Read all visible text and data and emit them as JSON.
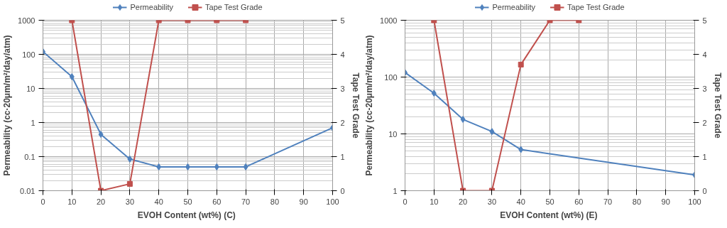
{
  "chart_data": [
    {
      "type": "line",
      "xlabel": "EVOH Content (wt%)  (C)",
      "ylabel": "Permeability (cc·20μm/m²/day/atm)",
      "y2label": "Tape Test Grade",
      "log": "y",
      "grid": true,
      "legend": "top",
      "xlim": [
        0,
        100
      ],
      "xticks": [
        0,
        10,
        20,
        30,
        40,
        50,
        60,
        70,
        80,
        90,
        100
      ],
      "ylim": [
        0.01,
        1000
      ],
      "yticks": [
        0.01,
        0.1,
        1,
        10,
        100,
        1000
      ],
      "y2lim": [
        0,
        5
      ],
      "y2ticks": [
        0,
        1,
        2,
        3,
        4,
        5
      ],
      "series": [
        {
          "name": "Permeability",
          "color": "#4f81bd",
          "marker": "diamond",
          "x": [
            0,
            10,
            20,
            30,
            40,
            50,
            60,
            70,
            100
          ],
          "values": [
            120,
            22,
            0.45,
            0.085,
            0.05,
            0.05,
            0.05,
            0.05,
            0.7
          ]
        },
        {
          "name": "Tape Test Grade",
          "color": "#c0504d",
          "marker": "square",
          "axis": "y2",
          "x": [
            10,
            20,
            30,
            40,
            50,
            60,
            70
          ],
          "values": [
            5,
            0,
            0.2,
            5,
            5,
            5,
            5
          ]
        }
      ]
    },
    {
      "type": "line",
      "xlabel": "EVOH Content (wt%)  (E)",
      "ylabel": "Permeability (cc-20μm/m²/day/atm)",
      "y2label": "Tape Test Grade",
      "log": "y",
      "grid": true,
      "legend": "top",
      "xlim": [
        0,
        100
      ],
      "xticks": [
        0,
        10,
        20,
        30,
        40,
        50,
        60,
        70,
        80,
        90,
        100
      ],
      "ylim": [
        1,
        1000
      ],
      "yticks": [
        1,
        10,
        100,
        1000
      ],
      "y2lim": [
        0,
        5
      ],
      "y2ticks": [
        0,
        1,
        2,
        3,
        4,
        5
      ],
      "series": [
        {
          "name": "Permeability",
          "color": "#4f81bd",
          "marker": "diamond",
          "x": [
            0,
            10,
            20,
            30,
            40,
            100
          ],
          "values": [
            120,
            52,
            18,
            11,
            5.3,
            1.9
          ]
        },
        {
          "name": "Tape Test Grade",
          "color": "#c0504d",
          "marker": "square",
          "axis": "y2",
          "x": [
            10,
            20,
            30,
            40,
            50,
            60
          ],
          "values": [
            5,
            0,
            0,
            3.7,
            5,
            5
          ]
        }
      ]
    }
  ]
}
